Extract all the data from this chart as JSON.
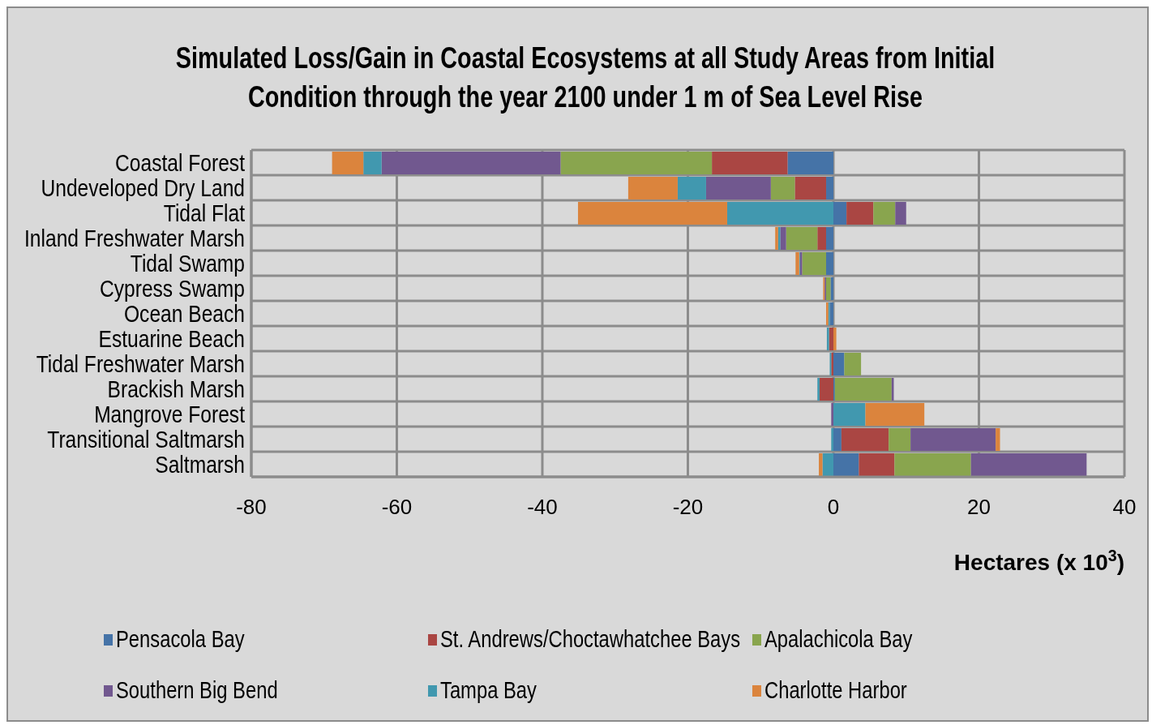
{
  "chart_data": {
    "type": "bar",
    "orientation": "horizontal",
    "stacked": true,
    "title": "Simulated Loss/Gain in Coastal Ecosystems at all Study Areas from Initial Condition through the year 2100 under 1 m of Sea Level Rise",
    "xlabel": "Hectares (x 10$^{3}$)",
    "categories": [
      "Coastal Forest",
      "Undeveloped Dry Land",
      "Tidal Flat",
      "Inland Freshwater Marsh",
      "Tidal Swamp",
      "Cypress Swamp",
      "Ocean Beach",
      "Estuarine Beach",
      "Tidal Freshwater Marsh",
      "Brackish Marsh",
      "Mangrove Forest",
      "Transitional Saltmarsh",
      "Saltmarsh"
    ],
    "series": [
      {
        "name": "Pensacola Bay",
        "color": "#4573a7",
        "values": [
          -6.3,
          -1.0,
          1.8,
          -1.0,
          -1.0,
          -0.4,
          -0.5,
          0,
          1.5,
          0.2,
          0,
          1.1,
          3.5
        ]
      },
      {
        "name": "St. Andrews/Choctawhatchee Bays",
        "color": "#aa4643",
        "values": [
          -10.4,
          -4.3,
          3.7,
          -1.2,
          0,
          0,
          0,
          -0.6,
          -0.3,
          -1.9,
          0,
          6.5,
          4.9
        ]
      },
      {
        "name": "Apalachicola Bay",
        "color": "#89a54e",
        "values": [
          -20.8,
          -3.3,
          3.0,
          -4.3,
          -3.3,
          -0.6,
          0,
          0,
          2.3,
          7.8,
          0,
          3.0,
          10.5
        ]
      },
      {
        "name": "Southern Big Bend",
        "color": "#71588f",
        "values": [
          -24.6,
          -8.9,
          1.5,
          -0.8,
          -0.3,
          -0.2,
          0,
          0,
          0,
          0.3,
          -0.3,
          11.7,
          15.9
        ]
      },
      {
        "name": "Tampa Bay",
        "color": "#4198af",
        "values": [
          -2.5,
          -3.9,
          -14.6,
          -0.3,
          -0.1,
          0,
          -0.2,
          -0.3,
          -0.2,
          -0.3,
          4.4,
          -0.3,
          -1.5
        ]
      },
      {
        "name": "Charlotte Harbor",
        "color": "#db843d",
        "values": [
          -4.3,
          -6.8,
          -20.5,
          -0.4,
          -0.5,
          -0.2,
          -0.3,
          0.4,
          0,
          0,
          8.1,
          0.6,
          -0.5
        ]
      }
    ],
    "xlim": [
      -80,
      40
    ],
    "xticks": [
      -80,
      -60,
      -40,
      -20,
      0,
      20,
      40
    ],
    "grid": true,
    "legend": "bottom"
  }
}
